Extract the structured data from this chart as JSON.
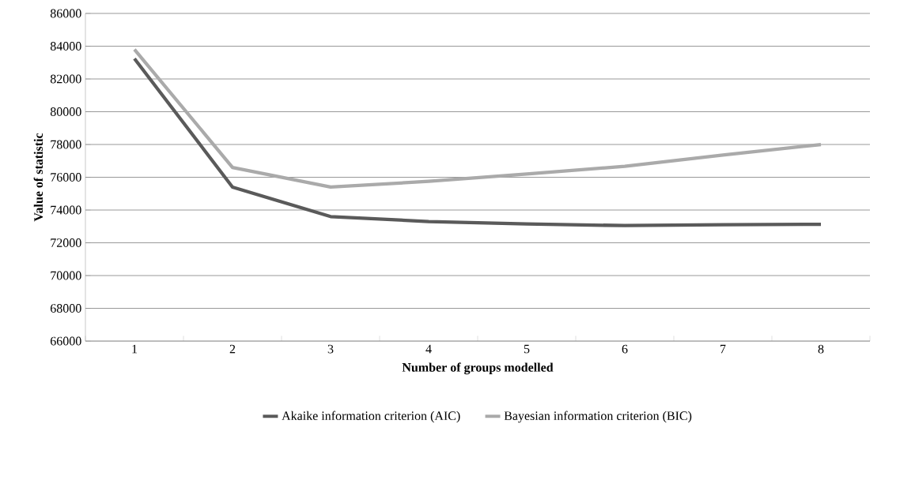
{
  "chart_data": {
    "type": "line",
    "xlabel": "Number of groups modelled",
    "ylabel": "Value of statistic",
    "categories": [
      "1",
      "2",
      "3",
      "4",
      "5",
      "6",
      "7",
      "8"
    ],
    "series": [
      {
        "name": "Akaike information criterion (AIC)",
        "color": "#5a5a5a",
        "values": [
          83240,
          75400,
          73600,
          73300,
          73150,
          73050,
          73100,
          73130
        ]
      },
      {
        "name": "Bayesian information criterion (BIC)",
        "color": "#aaaaaa",
        "values": [
          83800,
          76600,
          75400,
          75750,
          76200,
          76670,
          77350,
          78000
        ]
      }
    ],
    "ylim": [
      66000,
      86000
    ],
    "yticks": [
      66000,
      68000,
      70000,
      72000,
      74000,
      76000,
      78000,
      80000,
      82000,
      84000,
      86000
    ],
    "grid": "y",
    "legend": "bottom",
    "marker": "none",
    "line_style": "solid"
  }
}
